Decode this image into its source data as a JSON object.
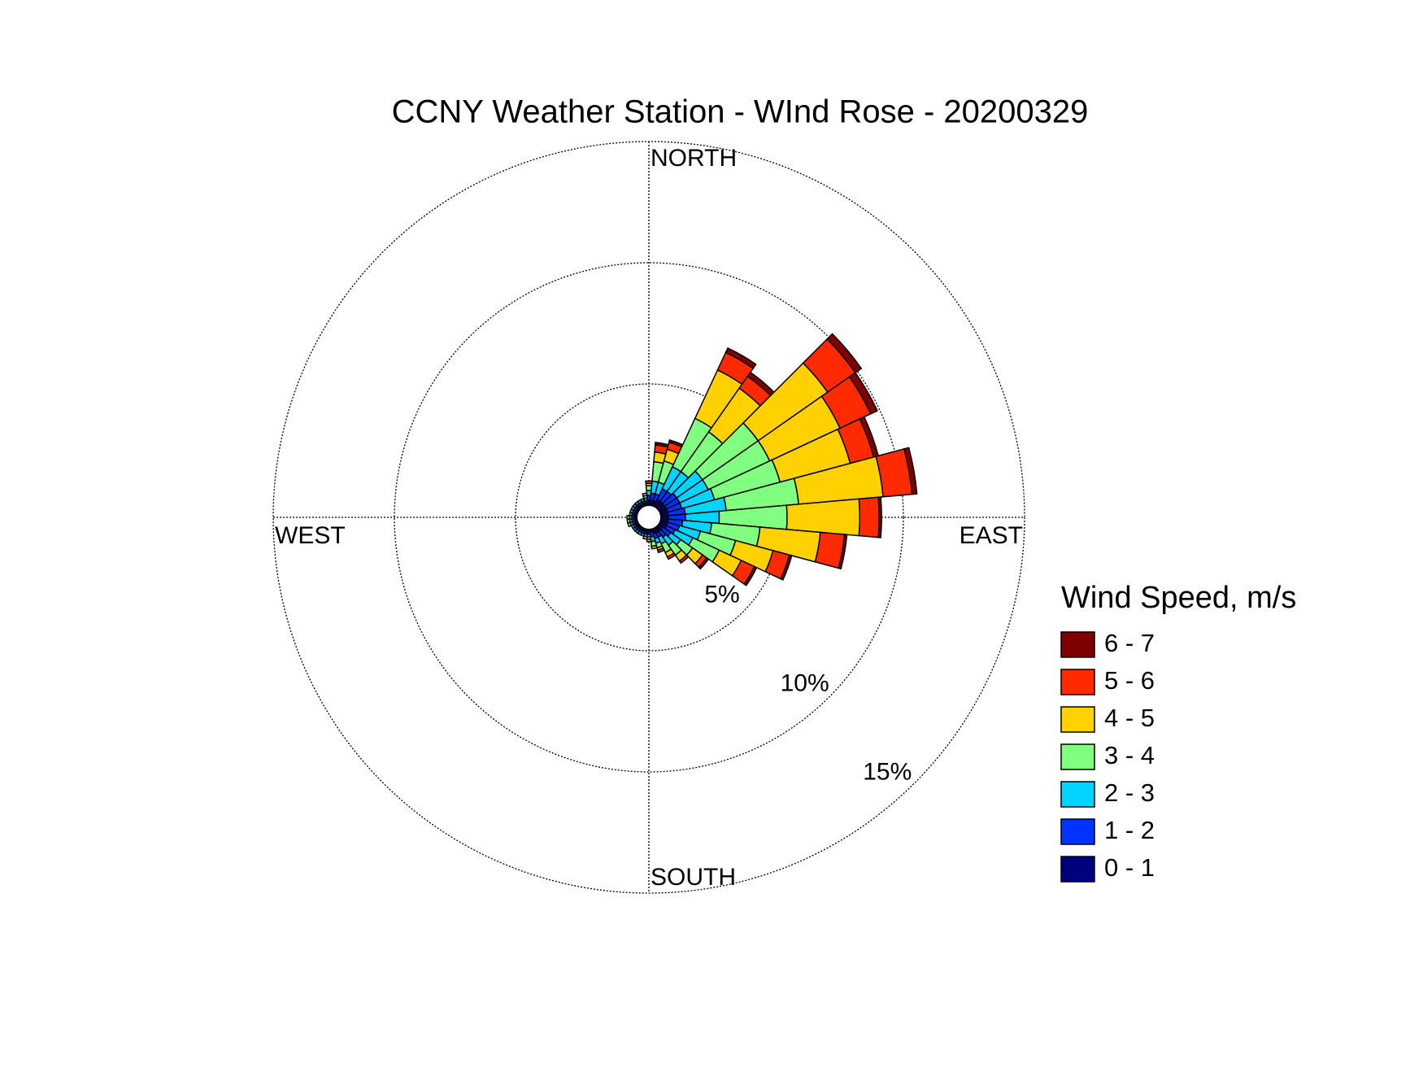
{
  "chart_data": {
    "type": "windrose",
    "title": "CCNY Weather Station - WInd Rose - 20200329",
    "direction_labels": [
      "NORTH",
      "EAST",
      "SOUTH",
      "WEST"
    ],
    "legend_title": "Wind Speed, m/s",
    "x": [
      0,
      10,
      20,
      30,
      40,
      50,
      60,
      70,
      80,
      90,
      100,
      110,
      120,
      130,
      140,
      150,
      160,
      170,
      180,
      190,
      200,
      210,
      220,
      230,
      240,
      250,
      260,
      270,
      280,
      290,
      300,
      310,
      320,
      330,
      340,
      350
    ],
    "rlim": [
      0,
      15
    ],
    "rticks": [
      {
        "value": 5,
        "label": "5%"
      },
      {
        "value": 10,
        "label": "10%"
      },
      {
        "value": 15,
        "label": "15%"
      }
    ],
    "grid": true,
    "series": [
      {
        "name": "6 - 7",
        "color": "#7f0000",
        "values": [
          0,
          0.1,
          0.1,
          0.2,
          0.2,
          0.3,
          0.3,
          0.2,
          0.2,
          0.1,
          0.1,
          0.1,
          0.1,
          0.1,
          0,
          0,
          0,
          0,
          0,
          0,
          0,
          0,
          0,
          0,
          0,
          0,
          0,
          0,
          0,
          0,
          0,
          0,
          0,
          0,
          0,
          0
        ]
      },
      {
        "name": "5 - 6",
        "color": "#ff2a00",
        "values": [
          0.1,
          0.3,
          0.3,
          0.8,
          0.6,
          1.4,
          1.4,
          1.0,
          1.2,
          0.8,
          1.0,
          0.7,
          0.6,
          0.2,
          0.1,
          0.1,
          0.1,
          0,
          0,
          0,
          0,
          0,
          0,
          0,
          0,
          0,
          0,
          0,
          0,
          0,
          0,
          0,
          0,
          0,
          0,
          0
        ]
      },
      {
        "name": "4 - 5",
        "color": "#ffd100",
        "values": [
          0.1,
          0.4,
          0.5,
          2.2,
          2.2,
          3.5,
          3.2,
          3.0,
          3.5,
          3.0,
          2.5,
          1.6,
          1.0,
          0.5,
          0.3,
          0.2,
          0.1,
          0.1,
          0.1,
          0,
          0,
          0,
          0,
          0,
          0,
          0,
          0,
          0,
          0,
          0,
          0,
          0,
          0,
          0,
          0,
          0.1
        ]
      },
      {
        "name": "3 - 4",
        "color": "#80ff80",
        "values": [
          0.2,
          0.8,
          0.9,
          2.2,
          2.0,
          2.8,
          2.8,
          2.8,
          3.0,
          2.8,
          2.0,
          1.5,
          1.2,
          0.6,
          0.5,
          0.4,
          0.2,
          0.2,
          0.1,
          0.1,
          0,
          0,
          0,
          0,
          0,
          0.1,
          0.1,
          0.1,
          0,
          0,
          0,
          0,
          0,
          0,
          0,
          0.1
        ]
      },
      {
        "name": "2 - 3",
        "color": "#00d4ff",
        "values": [
          0.2,
          0.5,
          0.5,
          1.0,
          1.0,
          1.3,
          1.3,
          1.4,
          1.7,
          1.4,
          1.2,
          0.9,
          0.8,
          0.5,
          0.4,
          0.3,
          0.2,
          0.2,
          0.1,
          0.1,
          0.1,
          0.1,
          0.1,
          0.1,
          0.1,
          0.1,
          0.1,
          0.1,
          0.1,
          0.1,
          0.1,
          0.1,
          0.1,
          0.1,
          0.1,
          0.1
        ]
      },
      {
        "name": "1 - 2",
        "color": "#0033ff",
        "values": [
          0.2,
          0.3,
          0.3,
          0.5,
          0.5,
          0.6,
          0.6,
          0.6,
          0.7,
          0.7,
          0.6,
          0.5,
          0.4,
          0.4,
          0.3,
          0.2,
          0.2,
          0.2,
          0.1,
          0.1,
          0.1,
          0.1,
          0.1,
          0.1,
          0.1,
          0.1,
          0.1,
          0.1,
          0.1,
          0.1,
          0.1,
          0.1,
          0.1,
          0.1,
          0.1,
          0.1
        ]
      },
      {
        "name": "0 - 1",
        "color": "#00007f",
        "values": [
          0.2,
          0.2,
          0.2,
          0.3,
          0.3,
          0.3,
          0.3,
          0.3,
          0.3,
          0.3,
          0.3,
          0.3,
          0.3,
          0.2,
          0.2,
          0.2,
          0.2,
          0.1,
          0.1,
          0.1,
          0.1,
          0.1,
          0.1,
          0.1,
          0.1,
          0.1,
          0.1,
          0.1,
          0.1,
          0.1,
          0.1,
          0.1,
          0.1,
          0.1,
          0.1,
          0.1
        ]
      }
    ]
  }
}
